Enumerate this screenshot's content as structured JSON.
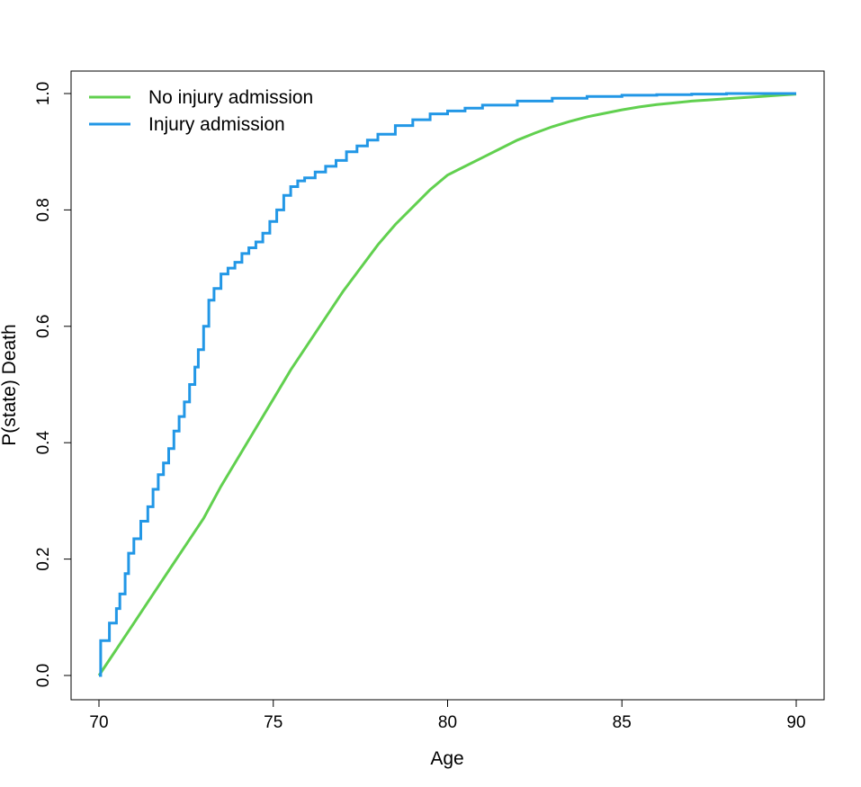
{
  "chart_data": {
    "type": "line",
    "title": "",
    "xlabel": "Age",
    "ylabel": "P(state) Death",
    "xlim": [
      70,
      90
    ],
    "ylim": [
      0,
      1
    ],
    "xticks": [
      "70",
      "75",
      "80",
      "85",
      "90"
    ],
    "yticks": [
      "0.0",
      "0.2",
      "0.4",
      "0.6",
      "0.8",
      "1.0"
    ],
    "grid": false,
    "legend_position": "top-left",
    "series": [
      {
        "name": "No injury admission",
        "color": "#61D04F",
        "step": false,
        "x": [
          70,
          70.5,
          71,
          71.5,
          72,
          72.5,
          73,
          73.5,
          74,
          74.5,
          75,
          75.5,
          76,
          76.5,
          77,
          77.5,
          78,
          78.5,
          79,
          79.5,
          80,
          80.5,
          81,
          81.5,
          82,
          82.5,
          83,
          83.5,
          84,
          84.5,
          85,
          85.5,
          86,
          86.5,
          87,
          87.5,
          88,
          88.5,
          89,
          89.5,
          90
        ],
        "y": [
          0.0,
          0.045,
          0.09,
          0.135,
          0.18,
          0.225,
          0.27,
          0.325,
          0.375,
          0.425,
          0.475,
          0.525,
          0.57,
          0.615,
          0.66,
          0.7,
          0.74,
          0.775,
          0.805,
          0.835,
          0.86,
          0.875,
          0.89,
          0.905,
          0.92,
          0.932,
          0.943,
          0.952,
          0.96,
          0.966,
          0.972,
          0.977,
          0.981,
          0.984,
          0.987,
          0.989,
          0.991,
          0.993,
          0.995,
          0.997,
          0.999
        ]
      },
      {
        "name": "Injury admission",
        "color": "#2297E6",
        "step": true,
        "x": [
          70,
          70.05,
          70.3,
          70.5,
          70.6,
          70.75,
          70.85,
          71,
          71.2,
          71.4,
          71.55,
          71.7,
          71.85,
          72,
          72.15,
          72.3,
          72.45,
          72.6,
          72.75,
          72.85,
          73,
          73.15,
          73.3,
          73.5,
          73.7,
          73.9,
          74.1,
          74.3,
          74.5,
          74.7,
          74.9,
          75.1,
          75.3,
          75.5,
          75.7,
          75.9,
          76.2,
          76.5,
          76.8,
          77.1,
          77.4,
          77.7,
          78,
          78.5,
          79,
          79.5,
          80,
          80.5,
          81,
          82,
          83,
          84,
          85,
          86,
          87,
          88,
          89,
          90
        ],
        "y": [
          0.0,
          0.06,
          0.09,
          0.115,
          0.14,
          0.175,
          0.21,
          0.235,
          0.265,
          0.29,
          0.32,
          0.345,
          0.365,
          0.39,
          0.42,
          0.445,
          0.47,
          0.5,
          0.53,
          0.56,
          0.6,
          0.645,
          0.665,
          0.69,
          0.7,
          0.71,
          0.725,
          0.735,
          0.745,
          0.76,
          0.78,
          0.8,
          0.825,
          0.84,
          0.85,
          0.855,
          0.865,
          0.875,
          0.885,
          0.9,
          0.91,
          0.92,
          0.93,
          0.945,
          0.955,
          0.965,
          0.97,
          0.975,
          0.98,
          0.987,
          0.992,
          0.995,
          0.997,
          0.998,
          0.999,
          1.0,
          1.0,
          1.0
        ]
      }
    ]
  }
}
